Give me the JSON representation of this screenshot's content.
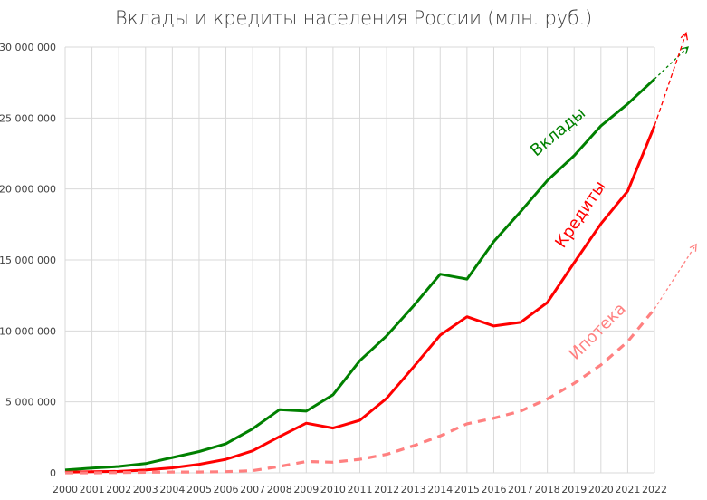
{
  "chart_data": {
    "type": "line",
    "title": "Вклады и кредиты населения России (млн. руб.)",
    "xlabel": "",
    "ylabel": "",
    "ylim": [
      0,
      30000000
    ],
    "grid": true,
    "legend": "inline-labels",
    "x": [
      "2000",
      "2001",
      "2002",
      "2003",
      "2004",
      "2005",
      "2006",
      "2007",
      "2008",
      "2009",
      "2010",
      "2011",
      "2012",
      "2013",
      "2014",
      "2015",
      "2016",
      "2017",
      "2018",
      "2019",
      "2020",
      "2021",
      "2022"
    ],
    "y_ticks": [
      "0",
      "5 000 000",
      "10 000 000",
      "15 000 000",
      "20 000 000",
      "25 000 000",
      "30 000 000"
    ],
    "y_tick_values": [
      0,
      5000000,
      10000000,
      15000000,
      20000000,
      25000000,
      30000000
    ],
    "series": [
      {
        "name": "Вклады",
        "color": "#008000",
        "style": "solid",
        "values": [
          200000,
          330000,
          450000,
          650000,
          1080000,
          1500000,
          2050000,
          3100000,
          4450000,
          4350000,
          5500000,
          7900000,
          9650000,
          11750000,
          14000000,
          13650000,
          16300000,
          18400000,
          20600000,
          22350000,
          24450000,
          26000000,
          27750000
        ],
        "trend_arrow": {
          "to_y": 30000000,
          "style": "dotted"
        }
      },
      {
        "name": "Кредиты",
        "color": "#ff0000",
        "style": "solid",
        "values": [
          50000,
          80000,
          100000,
          200000,
          350000,
          600000,
          950000,
          1550000,
          2550000,
          3500000,
          3150000,
          3700000,
          5250000,
          7450000,
          9700000,
          11000000,
          10350000,
          10600000,
          12000000,
          14800000,
          17550000,
          19850000,
          24450000
        ],
        "trend_arrow": {
          "to_y": 31000000,
          "style": "dashed"
        }
      },
      {
        "name": "Ипотека",
        "color": "#ff8080",
        "style": "dashed",
        "values": [
          0,
          0,
          20000,
          40000,
          60000,
          60000,
          80000,
          150000,
          450000,
          800000,
          750000,
          950000,
          1300000,
          1900000,
          2600000,
          3450000,
          3850000,
          4350000,
          5200000,
          6300000,
          7600000,
          9250000,
          11550000
        ],
        "trend_arrow": {
          "to_y": 16100000,
          "style": "dotted"
        }
      }
    ],
    "annotations": [
      {
        "text": "Вклады",
        "color": "#008000"
      },
      {
        "text": "Кредиты",
        "color": "#ff0000"
      },
      {
        "text": "Ипотека",
        "color": "#ff8080"
      }
    ]
  },
  "labels": {
    "title": "Вклады и кредиты населения России (млн. руб.)",
    "deposits": "Вклады",
    "credits": "Кредиты",
    "mortgage": "Ипотека"
  }
}
